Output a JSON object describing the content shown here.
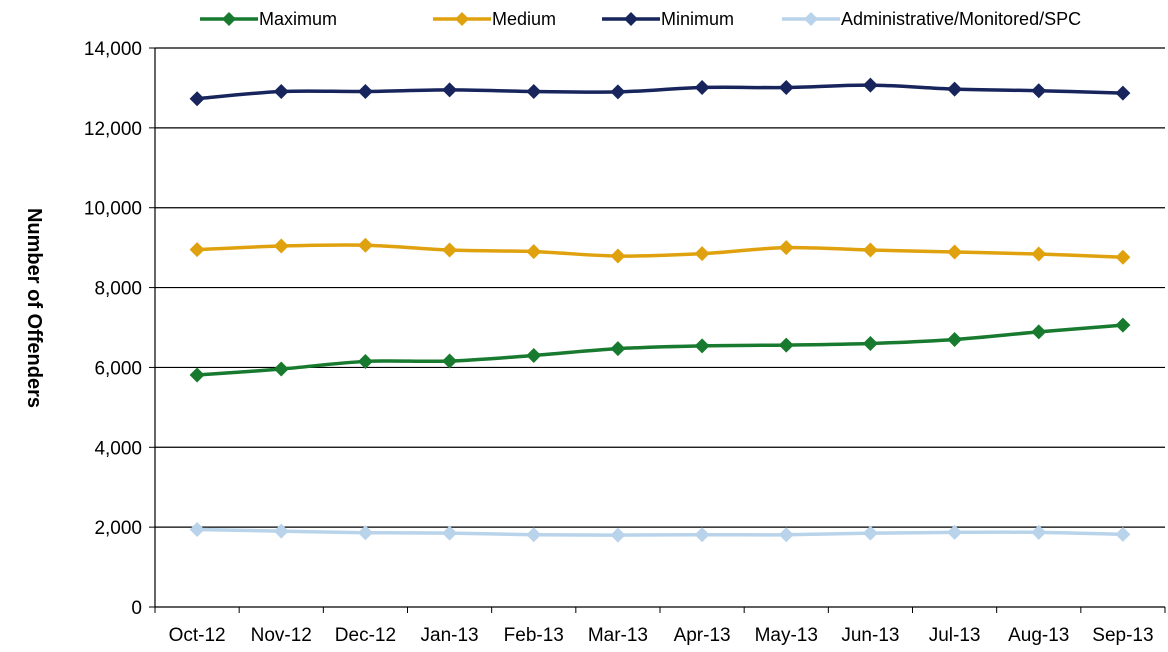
{
  "chart_data": {
    "type": "line",
    "title": "",
    "xlabel": "",
    "ylabel": "Number of Offenders",
    "ylim": [
      0,
      14000
    ],
    "yticks": [
      0,
      2000,
      4000,
      6000,
      8000,
      10000,
      12000,
      14000
    ],
    "ytick_labels": [
      "0",
      "2,000",
      "4,000",
      "6,000",
      "8,000",
      "10,000",
      "12,000",
      "14,000"
    ],
    "categories": [
      "Oct-12",
      "Nov-12",
      "Dec-12",
      "Jan-13",
      "Feb-13",
      "Mar-13",
      "Apr-13",
      "May-13",
      "Jun-13",
      "Jul-13",
      "Aug-13",
      "Sep-13"
    ],
    "grid": "horizontal",
    "legend_position": "top",
    "series": [
      {
        "name": "Maximum",
        "color": "#177a2e",
        "values": [
          5810,
          5960,
          6150,
          6160,
          6300,
          6470,
          6540,
          6560,
          6600,
          6700,
          6890,
          7060
        ]
      },
      {
        "name": "Medium",
        "color": "#e0a10e",
        "values": [
          8950,
          9040,
          9060,
          8940,
          8900,
          8790,
          8850,
          9000,
          8940,
          8890,
          8840,
          8760
        ]
      },
      {
        "name": "Minimum",
        "color": "#17255c",
        "values": [
          12730,
          12910,
          12910,
          12950,
          12910,
          12900,
          13010,
          13010,
          13070,
          12970,
          12930,
          12870
        ]
      },
      {
        "name": "Administrative/Monitored/SPC",
        "color": "#b8d3ea",
        "values": [
          1940,
          1900,
          1860,
          1850,
          1810,
          1800,
          1810,
          1810,
          1850,
          1870,
          1870,
          1820
        ]
      }
    ]
  }
}
